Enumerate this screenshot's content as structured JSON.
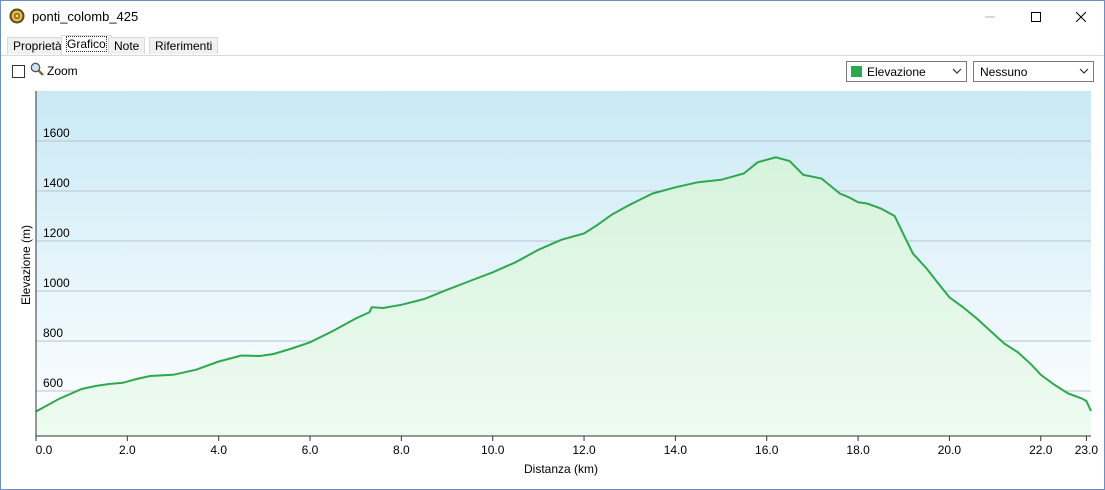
{
  "window": {
    "title": "ponti_colomb_425",
    "minimize_icon": "minimize-icon",
    "maximize_icon": "maximize-icon",
    "close_icon": "close-icon"
  },
  "tabs": [
    {
      "label": "Proprietà",
      "active": false
    },
    {
      "label": "Grafico",
      "active": true
    },
    {
      "label": "Note",
      "active": false
    },
    {
      "label": "Riferimenti",
      "active": false
    }
  ],
  "toolbar": {
    "zoom_label": "Zoom",
    "zoom_checked": false,
    "zoom_icon": "magnifier-icon",
    "series_select": {
      "value": "Elevazione",
      "swatch_color": "#2ea84e"
    },
    "secondary_select": {
      "value": "Nessuno"
    }
  },
  "colors": {
    "line": "#2ea84e",
    "fill_top": "#d6f3dc",
    "fill_bottom": "#eefbf1",
    "bg_top": "#c9e9f5",
    "bg_bottom": "#ffffff",
    "grid": "#b9c4cc"
  },
  "chart_data": {
    "type": "area",
    "xlabel": "Distanza  (km)",
    "ylabel": "Elevazione (m)",
    "xlim": [
      0,
      23.1
    ],
    "ylim": [
      420,
      1800
    ],
    "x_ticks": [
      0.0,
      2.0,
      4.0,
      6.0,
      8.0,
      10.0,
      12.0,
      14.0,
      16.0,
      18.0,
      20.0,
      22.0,
      23.0
    ],
    "x_tick_labels": [
      "0.0",
      "2.0",
      "4.0",
      "6.0",
      "8.0",
      "10.0",
      "12.0",
      "14.0",
      "16.0",
      "18.0",
      "20.0",
      "22.0",
      "23.0"
    ],
    "y_ticks": [
      600,
      800,
      1000,
      1200,
      1400,
      1600
    ],
    "y_tick_labels": [
      "600",
      "800",
      "1000",
      "1200",
      "1400",
      "1600"
    ],
    "grid": "horizontal",
    "series": [
      {
        "x": [
          0,
          0.5,
          1.0,
          1.3,
          1.6,
          1.9,
          2.2,
          2.5,
          3.0,
          3.5,
          4.0,
          4.5,
          4.9,
          5.2,
          5.6,
          6.0,
          6.5,
          7.0,
          7.3,
          7.35,
          7.6,
          8.0,
          8.5,
          9.0,
          9.5,
          10.0,
          10.5,
          11.0,
          11.5,
          12.0,
          12.3,
          12.6,
          13.0,
          13.5,
          14.0,
          14.5,
          15.0,
          15.5,
          15.8,
          16.2,
          16.5,
          16.8,
          17.2,
          17.6,
          17.8,
          18.0,
          18.2,
          18.5,
          18.8,
          19.0,
          19.2,
          19.5,
          19.8,
          20.0,
          20.3,
          20.6,
          20.9,
          21.2,
          21.5,
          21.8,
          22.0,
          22.3,
          22.6,
          22.9,
          23.0,
          23.1
        ],
        "y": [
          518,
          568,
          608,
          620,
          628,
          633,
          648,
          660,
          665,
          685,
          718,
          742,
          740,
          748,
          770,
          795,
          840,
          890,
          915,
          935,
          932,
          945,
          968,
          1005,
          1040,
          1075,
          1115,
          1165,
          1205,
          1230,
          1265,
          1305,
          1345,
          1390,
          1415,
          1435,
          1445,
          1470,
          1515,
          1535,
          1520,
          1465,
          1450,
          1390,
          1375,
          1355,
          1350,
          1330,
          1300,
          1225,
          1150,
          1090,
          1020,
          975,
          935,
          890,
          840,
          790,
          755,
          705,
          665,
          625,
          590,
          570,
          560,
          520
        ]
      }
    ]
  }
}
